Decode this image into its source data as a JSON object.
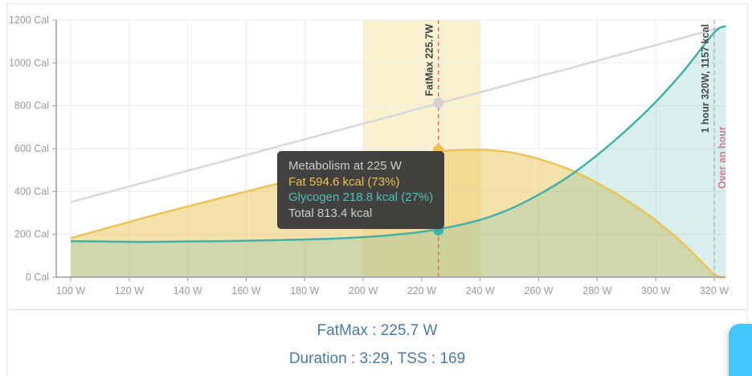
{
  "chart_data": {
    "type": "area",
    "title": "Metabolism (fat vs glycogen kcal) across power output",
    "x_unit": "W",
    "y_unit": "Cal",
    "x_range": [
      100,
      320
    ],
    "y_range": [
      0,
      1200
    ],
    "grid": true,
    "x_tick_labels": [
      "100 W",
      "120 W",
      "140 W",
      "160 W",
      "180 W",
      "200 W",
      "220 W",
      "240 W",
      "260 W",
      "280 W",
      "300 W",
      "320 W"
    ],
    "x_tick_values": [
      100,
      120,
      140,
      160,
      180,
      200,
      220,
      240,
      260,
      280,
      300,
      320
    ],
    "y_tick_labels": [
      "0 Cal",
      "200 Cal",
      "400 Cal",
      "600 Cal",
      "800 Cal",
      "1000 Cal",
      "1200 Cal"
    ],
    "y_tick_values": [
      0,
      200,
      400,
      600,
      800,
      1000,
      1200
    ],
    "x": [
      100,
      110,
      120,
      130,
      140,
      150,
      160,
      170,
      180,
      190,
      200,
      210,
      220,
      230,
      240,
      250,
      260,
      270,
      280,
      290,
      300,
      310,
      320,
      324
    ],
    "series": [
      {
        "name": "total",
        "color": "#d7d7d7",
        "fill": "none",
        "values": [
          350,
          387,
          423,
          460,
          497,
          533,
          570,
          607,
          643,
          680,
          717,
          753,
          790,
          827,
          863,
          900,
          937,
          973,
          1010,
          1047,
          1083,
          1120,
          1157,
          1172
        ]
      },
      {
        "name": "fat",
        "color": "#ecc355",
        "fill": "rgba(236,195,85,0.5)",
        "values": [
          182,
          220,
          258,
          295,
          330,
          365,
          400,
          434,
          467,
          500,
          530,
          556,
          578,
          592,
          595,
          583,
          552,
          505,
          440,
          360,
          265,
          150,
          15,
          0
        ]
      },
      {
        "name": "glycogen",
        "color": "#43b1a7",
        "fill": "rgba(77,182,172,0.22)",
        "values": [
          168,
          167,
          165,
          165,
          167,
          168,
          170,
          173,
          176,
          180,
          187,
          197,
          212,
          235,
          268,
          317,
          385,
          468,
          570,
          687,
          818,
          970,
          1142,
          1172
        ]
      }
    ],
    "fatmax_zone": {
      "from_w": 200,
      "to_w": 240,
      "color": "#faf1cf"
    },
    "marker": {
      "power_w": 225.7,
      "fat_kcal": 594.6,
      "glycogen_kcal": 218.8,
      "total_kcal": 813.4
    },
    "reference_lines": [
      {
        "id": "fatmax",
        "x_w": 225.7,
        "color": "#e0627f"
      },
      {
        "id": "one-hour",
        "x_w": 320,
        "color": "#b3b3b3"
      }
    ],
    "annotations": [
      {
        "id": "fatmax",
        "text": "FatMax 225.7W",
        "color": "#3f3f3f"
      },
      {
        "id": "one-hour",
        "text": "1 hour 320W, 1157 kcal",
        "color": "#4a4a4a"
      },
      {
        "id": "over-hour",
        "text": "Over an hour",
        "color": "#d47f9b"
      }
    ],
    "axis_color": "#9b9b9b",
    "grid_color": "#ebebeb",
    "tick_label_color": "#9a9a9a"
  },
  "tooltip": {
    "title": "Metabolism at 225 W",
    "fat": "Fat 594.6 kcal (73%)",
    "glycogen": "Glycogen 218.8 kcal (27%)",
    "total": "Total 813.4 kcal"
  },
  "footer": {
    "line1": "FatMax : 225.7 W",
    "line2": "Duration : 3:29, TSS : 169"
  },
  "colors": {
    "footer_text": "#4a7aa3",
    "chat_tab": "#41c7fb",
    "tooltip_bg": "#3a3a3a"
  }
}
